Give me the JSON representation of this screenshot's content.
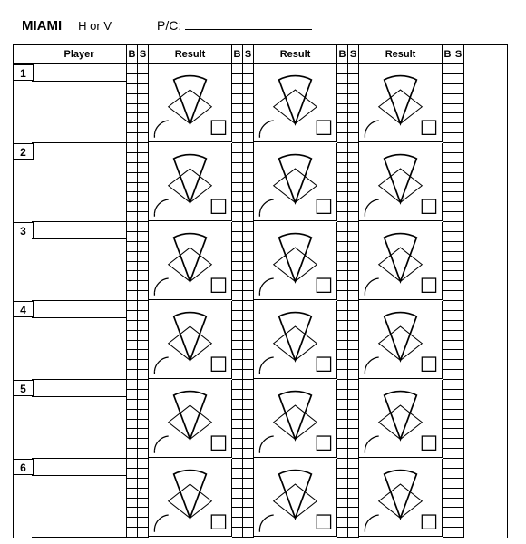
{
  "header": {
    "team": "MIAMI",
    "hv_label": "H  or  V",
    "pc_label": "P/C:"
  },
  "columns": {
    "player": "Player",
    "b": "B",
    "s": "S",
    "result": "Result"
  },
  "rows": [
    {
      "num": "1"
    },
    {
      "num": "2"
    },
    {
      "num": "3"
    },
    {
      "num": "4"
    },
    {
      "num": "5"
    },
    {
      "num": "6"
    }
  ],
  "result_columns": 3,
  "bs_rows_per_cell": 8,
  "styling": {
    "border_color": "#000000",
    "background": "#ffffff",
    "fan_fill": "#ffffff",
    "fan_stroke": "#000000"
  }
}
